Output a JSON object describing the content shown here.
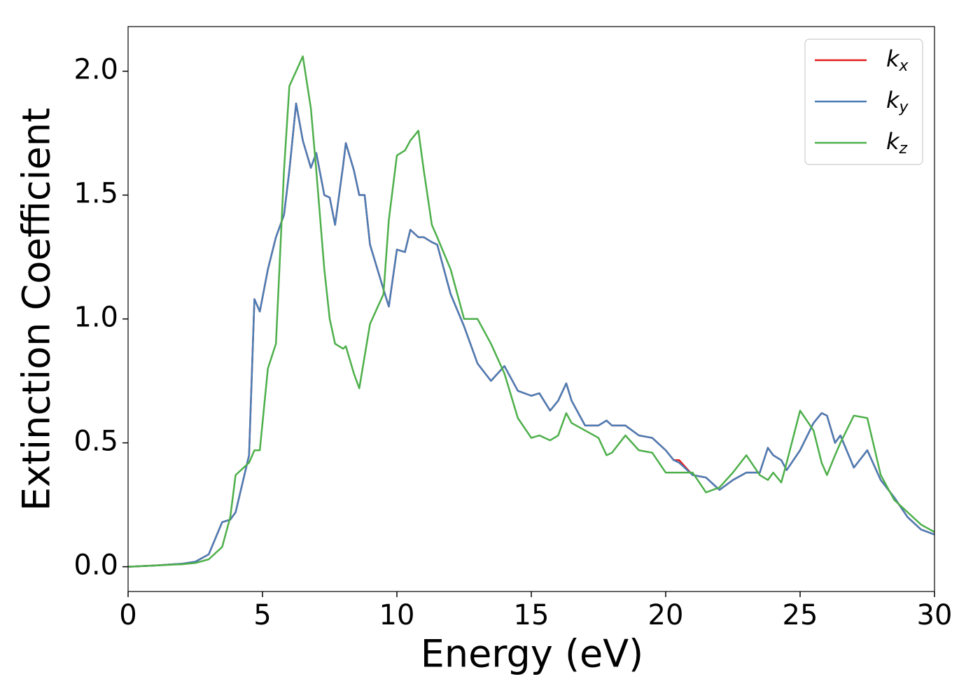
{
  "chart_data": {
    "type": "line",
    "xlabel": "Energy (eV)",
    "ylabel": "Extinction Coefficient",
    "x": [
      0,
      1,
      2,
      2.5,
      3,
      3.5,
      3.8,
      4,
      4.5,
      4.7,
      4.9,
      5.2,
      5.5,
      5.8,
      6,
      6.25,
      6.5,
      6.8,
      7,
      7.3,
      7.5,
      7.7,
      8,
      8.1,
      8.4,
      8.6,
      8.8,
      9,
      9.5,
      9.7,
      10,
      10.3,
      10.5,
      10.8,
      11,
      11.3,
      11.5,
      12,
      12.5,
      13,
      13.5,
      14,
      14.5,
      15,
      15.3,
      15.7,
      16,
      16.3,
      16.5,
      17,
      17.5,
      17.8,
      18,
      18.5,
      19,
      19.5,
      20,
      20.3,
      20.5,
      21,
      21.5,
      22,
      22.5,
      23,
      23.5,
      23.8,
      24,
      24.3,
      24.5,
      25,
      25.5,
      25.8,
      26,
      26.3,
      26.5,
      27,
      27.5,
      28,
      28.5,
      29,
      29.5,
      30
    ],
    "series": [
      {
        "name": "kx",
        "color": "#e41a1c",
        "values": [
          0,
          0.005,
          0.012,
          0.02,
          0.05,
          0.18,
          0.19,
          0.22,
          0.45,
          1.08,
          1.03,
          1.2,
          1.33,
          1.42,
          1.6,
          1.87,
          1.72,
          1.61,
          1.67,
          1.5,
          1.49,
          1.38,
          1.62,
          1.71,
          1.6,
          1.5,
          1.5,
          1.3,
          1.12,
          1.05,
          1.28,
          1.27,
          1.36,
          1.33,
          1.33,
          1.31,
          1.3,
          1.1,
          0.97,
          0.82,
          0.75,
          0.81,
          0.71,
          0.69,
          0.7,
          0.63,
          0.67,
          0.74,
          0.67,
          0.57,
          0.57,
          0.59,
          0.57,
          0.57,
          0.53,
          0.52,
          0.47,
          0.43,
          0.43,
          0.37,
          0.36,
          0.31,
          0.35,
          0.38,
          0.38,
          0.48,
          0.45,
          0.43,
          0.39,
          0.47,
          0.58,
          0.62,
          0.61,
          0.5,
          0.53,
          0.4,
          0.47,
          0.35,
          0.28,
          0.2,
          0.15,
          0.13
        ]
      },
      {
        "name": "ky",
        "color": "#4a7db5",
        "values": [
          0,
          0.005,
          0.012,
          0.02,
          0.05,
          0.18,
          0.19,
          0.22,
          0.45,
          1.08,
          1.03,
          1.2,
          1.33,
          1.42,
          1.6,
          1.87,
          1.72,
          1.61,
          1.67,
          1.5,
          1.49,
          1.38,
          1.62,
          1.71,
          1.6,
          1.5,
          1.5,
          1.3,
          1.12,
          1.05,
          1.28,
          1.27,
          1.36,
          1.33,
          1.33,
          1.31,
          1.3,
          1.1,
          0.97,
          0.82,
          0.75,
          0.81,
          0.71,
          0.69,
          0.7,
          0.63,
          0.67,
          0.74,
          0.67,
          0.57,
          0.57,
          0.59,
          0.57,
          0.57,
          0.53,
          0.52,
          0.47,
          0.43,
          0.42,
          0.37,
          0.36,
          0.31,
          0.35,
          0.38,
          0.38,
          0.48,
          0.45,
          0.43,
          0.39,
          0.47,
          0.58,
          0.62,
          0.61,
          0.5,
          0.53,
          0.4,
          0.47,
          0.35,
          0.28,
          0.2,
          0.15,
          0.13
        ]
      },
      {
        "name": "kz",
        "color": "#4daf4a",
        "values": [
          0,
          0.005,
          0.01,
          0.015,
          0.03,
          0.08,
          0.2,
          0.37,
          0.42,
          0.47,
          0.47,
          0.8,
          0.9,
          1.6,
          1.94,
          2.0,
          2.06,
          1.85,
          1.6,
          1.2,
          1.0,
          0.9,
          0.88,
          0.89,
          0.78,
          0.72,
          0.85,
          0.98,
          1.1,
          1.4,
          1.66,
          1.68,
          1.72,
          1.76,
          1.6,
          1.38,
          1.33,
          1.2,
          1.0,
          1.0,
          0.9,
          0.78,
          0.6,
          0.52,
          0.53,
          0.51,
          0.53,
          0.62,
          0.58,
          0.55,
          0.52,
          0.45,
          0.46,
          0.53,
          0.47,
          0.46,
          0.38,
          0.38,
          0.38,
          0.38,
          0.3,
          0.32,
          0.38,
          0.45,
          0.37,
          0.35,
          0.38,
          0.34,
          0.42,
          0.63,
          0.55,
          0.42,
          0.37,
          0.45,
          0.5,
          0.61,
          0.6,
          0.37,
          0.27,
          0.22,
          0.17,
          0.14
        ]
      }
    ],
    "xlim": [
      0,
      30
    ],
    "xticks": [
      0,
      5,
      10,
      15,
      20,
      25,
      30
    ],
    "ylim": [
      -0.1,
      2.18
    ],
    "yticks": [
      {
        "value": 0,
        "label": "0.0"
      },
      0.5,
      {
        "value": 1,
        "label": "1.0"
      },
      1.5,
      {
        "value": 2,
        "label": "2.0"
      }
    ],
    "legend": "upper right"
  }
}
